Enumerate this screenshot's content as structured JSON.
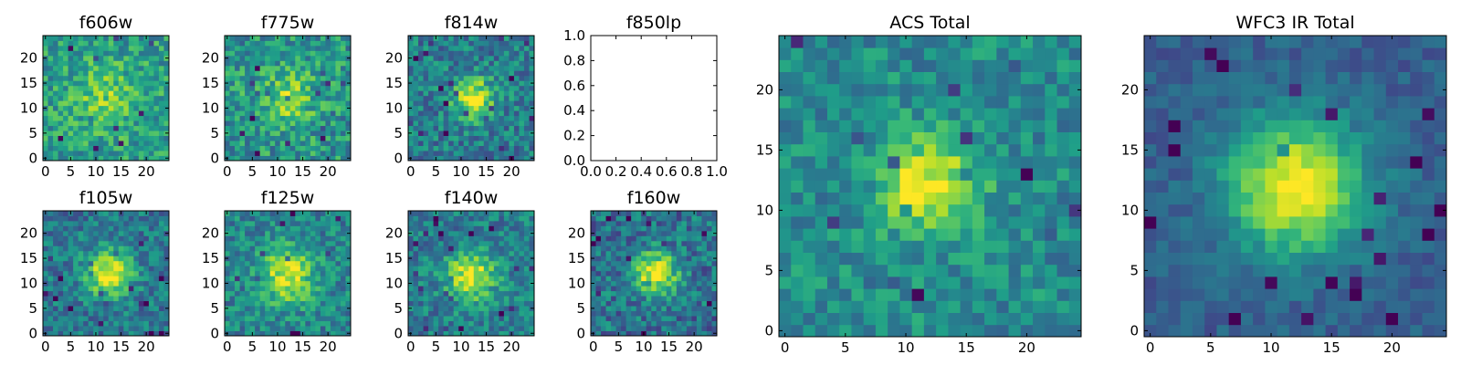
{
  "colormap": "viridis",
  "chart_data": [
    {
      "type": "heatmap",
      "title": "f606w",
      "grid": [
        25,
        25
      ],
      "xlim": [
        -0.5,
        24.5
      ],
      "ylim": [
        -0.5,
        24.5
      ],
      "xticks": [
        "0",
        "5",
        "10",
        "15",
        "20"
      ],
      "yticks": [
        "0",
        "5",
        "10",
        "15",
        "20"
      ],
      "source_center": [
        12,
        12
      ],
      "source_width": 4.5,
      "peak": 0.78,
      "background": 0.55,
      "noise": 0.2,
      "seed": 11
    },
    {
      "type": "heatmap",
      "title": "f775w",
      "grid": [
        25,
        25
      ],
      "xlim": [
        -0.5,
        24.5
      ],
      "ylim": [
        -0.5,
        24.5
      ],
      "xticks": [
        "0",
        "5",
        "10",
        "15",
        "20"
      ],
      "yticks": [
        "0",
        "5",
        "10",
        "15",
        "20"
      ],
      "source_center": [
        12,
        12
      ],
      "source_width": 4.0,
      "peak": 0.8,
      "background": 0.52,
      "noise": 0.22,
      "seed": 23
    },
    {
      "type": "heatmap",
      "title": "f814w",
      "grid": [
        25,
        25
      ],
      "xlim": [
        -0.5,
        24.5
      ],
      "ylim": [
        -0.5,
        24.5
      ],
      "xticks": [
        "0",
        "5",
        "10",
        "15",
        "20"
      ],
      "yticks": [
        "0",
        "5",
        "10",
        "15",
        "20"
      ],
      "source_center": [
        12.5,
        12
      ],
      "source_width": 2.8,
      "peak": 1.0,
      "background": 0.42,
      "noise": 0.2,
      "seed": 37
    },
    {
      "type": "empty",
      "title": "f850lp",
      "xlim": [
        0.0,
        1.0
      ],
      "ylim": [
        0.0,
        1.0
      ],
      "xticks": [
        "0.0",
        "0.2",
        "0.4",
        "0.6",
        "0.8",
        "1.0"
      ],
      "yticks": [
        "0.0",
        "0.2",
        "0.4",
        "0.6",
        "0.8",
        "1.0"
      ]
    },
    {
      "type": "heatmap",
      "title": "ACS Total",
      "grid": [
        25,
        25
      ],
      "xlim": [
        -0.5,
        24.5
      ],
      "ylim": [
        -0.5,
        24.5
      ],
      "xticks": [
        "0",
        "5",
        "10",
        "15",
        "20"
      ],
      "yticks": [
        "0",
        "5",
        "10",
        "15",
        "20"
      ],
      "source_center": [
        12,
        12
      ],
      "source_width": 2.8,
      "peak": 1.0,
      "background": 0.48,
      "noise": 0.16,
      "seed": 53
    },
    {
      "type": "heatmap",
      "title": "WFC3 IR Total",
      "grid": [
        25,
        25
      ],
      "xlim": [
        -0.5,
        24.5
      ],
      "ylim": [
        -0.5,
        24.5
      ],
      "xticks": [
        "0",
        "5",
        "10",
        "15",
        "20"
      ],
      "yticks": [
        "0",
        "5",
        "10",
        "15",
        "20"
      ],
      "source_center": [
        12,
        12
      ],
      "source_width": 4.0,
      "peak": 1.0,
      "background": 0.3,
      "noise": 0.09,
      "seed": 71
    },
    {
      "type": "heatmap",
      "title": "f105w",
      "grid": [
        25,
        25
      ],
      "xlim": [
        -0.5,
        24.5
      ],
      "ylim": [
        -0.5,
        24.5
      ],
      "xticks": [
        "0",
        "5",
        "10",
        "15",
        "20"
      ],
      "yticks": [
        "0",
        "5",
        "10",
        "15",
        "20"
      ],
      "source_center": [
        12.5,
        12
      ],
      "source_width": 3.2,
      "peak": 1.0,
      "background": 0.4,
      "noise": 0.18,
      "seed": 83
    },
    {
      "type": "heatmap",
      "title": "f125w",
      "grid": [
        25,
        25
      ],
      "xlim": [
        -0.5,
        24.5
      ],
      "ylim": [
        -0.5,
        24.5
      ],
      "xticks": [
        "0",
        "5",
        "10",
        "15",
        "20"
      ],
      "yticks": [
        "0",
        "5",
        "10",
        "15",
        "20"
      ],
      "source_center": [
        12,
        11.5
      ],
      "source_width": 3.8,
      "peak": 0.95,
      "background": 0.45,
      "noise": 0.18,
      "seed": 97
    },
    {
      "type": "heatmap",
      "title": "f140w",
      "grid": [
        25,
        25
      ],
      "xlim": [
        -0.5,
        24.5
      ],
      "ylim": [
        -0.5,
        24.5
      ],
      "xticks": [
        "0",
        "5",
        "10",
        "15",
        "20"
      ],
      "yticks": [
        "0",
        "5",
        "10",
        "15",
        "20"
      ],
      "source_center": [
        12,
        11.5
      ],
      "source_width": 3.5,
      "peak": 0.95,
      "background": 0.42,
      "noise": 0.18,
      "seed": 109
    },
    {
      "type": "heatmap",
      "title": "f160w",
      "grid": [
        25,
        25
      ],
      "xlim": [
        -0.5,
        24.5
      ],
      "ylim": [
        -0.5,
        24.5
      ],
      "xticks": [
        "0",
        "5",
        "10",
        "15",
        "20"
      ],
      "yticks": [
        "0",
        "5",
        "10",
        "15",
        "20"
      ],
      "source_center": [
        12.5,
        12
      ],
      "source_width": 3.0,
      "peak": 1.0,
      "background": 0.38,
      "noise": 0.2,
      "seed": 127
    }
  ]
}
